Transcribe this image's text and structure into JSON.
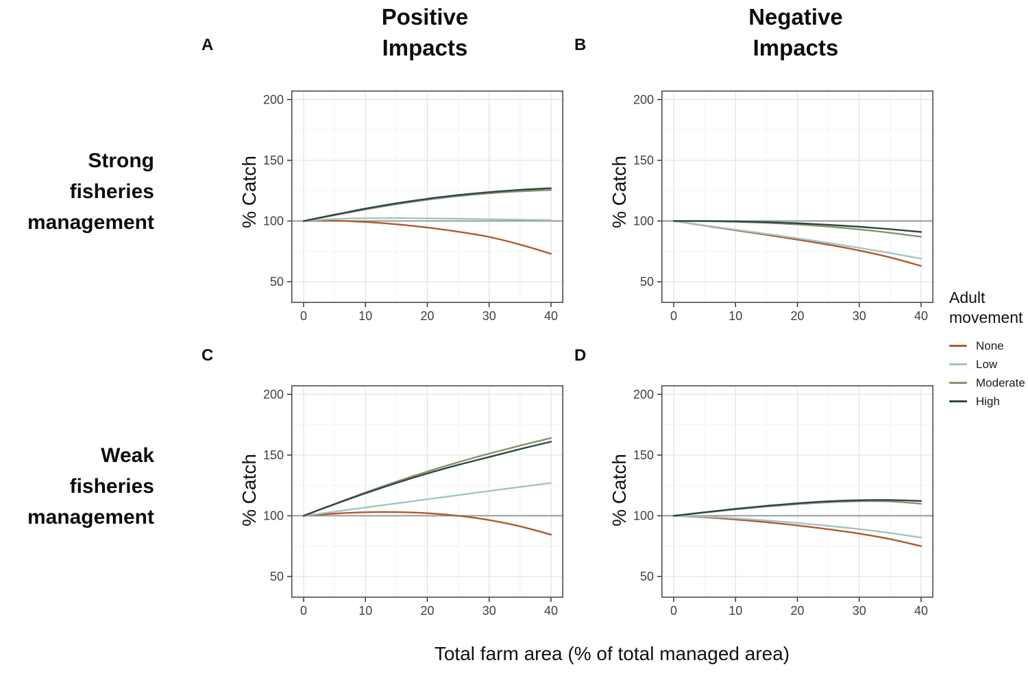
{
  "figure": {
    "column_headers": [
      {
        "line1": "Positive",
        "line2": "Impacts"
      },
      {
        "line1": "Negative",
        "line2": "Impacts"
      }
    ],
    "panel_labels": [
      "A",
      "B",
      "C",
      "D"
    ],
    "row_headers": [
      {
        "lines": [
          "Strong",
          "fisheries",
          "management"
        ]
      },
      {
        "lines": [
          "Weak",
          "fisheries",
          "management"
        ]
      }
    ],
    "y_axis_label": "% Catch",
    "x_axis_label": "Total farm area (% of total managed area)",
    "legend": {
      "title_line1": "Adult",
      "title_line2": "movement",
      "items": [
        {
          "label": "None",
          "color": "#b2572f"
        },
        {
          "label": "Low",
          "color": "#a0c5c0"
        },
        {
          "label": "Moderate",
          "color": "#8c8f6e"
        },
        {
          "label": "High",
          "color": "#2d4746"
        }
      ]
    },
    "colors": {
      "grid_major": "#e4e4e4",
      "grid_minor": "#f2f2f2",
      "panel_border": "#4d4d4d",
      "reference_line": "#999999",
      "tick_mark": "#333333",
      "tick_text": "#404040"
    }
  },
  "chart_data": [
    {
      "panel": "A",
      "type": "line",
      "row": "Strong fisheries management",
      "column": "Positive Impacts",
      "x": [
        0,
        5,
        10,
        15,
        20,
        25,
        30,
        35,
        40
      ],
      "xticks": [
        0,
        10,
        20,
        30,
        40
      ],
      "yticks": [
        50,
        100,
        150,
        200
      ],
      "xticks_minor": [
        5,
        15,
        25,
        35
      ],
      "yticks_minor": [
        75,
        125,
        175
      ],
      "xlim": [
        -2,
        42
      ],
      "ylim": [
        32.5,
        207.5
      ],
      "reference_y": 100,
      "series": [
        {
          "name": "None",
          "color": "#b2572f",
          "values": [
            100,
            100.3,
            99.2,
            97.3,
            94.6,
            91.2,
            86.9,
            80.6,
            73
          ]
        },
        {
          "name": "Low",
          "color": "#a0c5c0",
          "values": [
            100,
            101.6,
            102.3,
            102.4,
            102.2,
            101.9,
            101.5,
            101.1,
            100.8
          ]
        },
        {
          "name": "Moderate",
          "color": "#8c8f6e",
          "values": [
            100,
            104.8,
            109.5,
            113.8,
            117.5,
            120.5,
            122.8,
            124.4,
            125.5
          ]
        },
        {
          "name": "High",
          "color": "#2d4746",
          "values": [
            100,
            105.2,
            110.2,
            114.6,
            118.3,
            121.4,
            123.8,
            125.7,
            127
          ]
        }
      ]
    },
    {
      "panel": "B",
      "type": "line",
      "row": "Strong fisheries management",
      "column": "Negative Impacts",
      "x": [
        0,
        5,
        10,
        15,
        20,
        25,
        30,
        35,
        40
      ],
      "xticks": [
        0,
        10,
        20,
        30,
        40
      ],
      "yticks": [
        50,
        100,
        150,
        200
      ],
      "xticks_minor": [
        5,
        15,
        25,
        35
      ],
      "yticks_minor": [
        75,
        125,
        175
      ],
      "xlim": [
        -2,
        42
      ],
      "ylim": [
        32.5,
        207.5
      ],
      "reference_y": 100,
      "series": [
        {
          "name": "None",
          "color": "#b2572f",
          "values": [
            100,
            96.2,
            92.4,
            88.6,
            84.7,
            80.5,
            75.7,
            70,
            63
          ]
        },
        {
          "name": "Low",
          "color": "#a0c5c0",
          "values": [
            100,
            96.4,
            92.9,
            89.4,
            85.8,
            82,
            77.9,
            73.6,
            69
          ]
        },
        {
          "name": "Moderate",
          "color": "#8c8f6e",
          "values": [
            100,
            99.9,
            99.4,
            98.5,
            97.2,
            95.4,
            93.1,
            90.3,
            87
          ]
        },
        {
          "name": "High",
          "color": "#2d4746",
          "values": [
            100,
            100,
            99.7,
            99.1,
            98.2,
            96.9,
            95.3,
            93.3,
            91
          ]
        }
      ]
    },
    {
      "panel": "C",
      "type": "line",
      "row": "Weak fisheries management",
      "column": "Positive Impacts",
      "x": [
        0,
        5,
        10,
        15,
        20,
        25,
        30,
        35,
        40
      ],
      "xticks": [
        0,
        10,
        20,
        30,
        40
      ],
      "yticks": [
        50,
        100,
        150,
        200
      ],
      "xticks_minor": [
        5,
        15,
        25,
        35
      ],
      "yticks_minor": [
        75,
        125,
        175
      ],
      "xlim": [
        -2,
        42
      ],
      "ylim": [
        32.5,
        207.5
      ],
      "reference_y": 100,
      "series": [
        {
          "name": "None",
          "color": "#b2572f",
          "values": [
            100,
            101.8,
            102.9,
            103,
            102.1,
            100,
            96.5,
            91.3,
            84.5
          ]
        },
        {
          "name": "Low",
          "color": "#a0c5c0",
          "values": [
            100,
            103.4,
            106.8,
            110.2,
            113.6,
            117,
            120.4,
            123.7,
            127
          ]
        },
        {
          "name": "Moderate",
          "color": "#8c8f6e",
          "values": [
            100,
            109.8,
            119.2,
            128.1,
            136.4,
            144.1,
            151.2,
            157.8,
            164
          ]
        },
        {
          "name": "High",
          "color": "#2d4746",
          "values": [
            100,
            109.5,
            118.5,
            127,
            134.8,
            141.9,
            148.4,
            154.9,
            161
          ]
        }
      ]
    },
    {
      "panel": "D",
      "type": "line",
      "row": "Weak fisheries management",
      "column": "Negative Impacts",
      "x": [
        0,
        5,
        10,
        15,
        20,
        25,
        30,
        35,
        40
      ],
      "xticks": [
        0,
        10,
        20,
        30,
        40
      ],
      "yticks": [
        50,
        100,
        150,
        200
      ],
      "xticks_minor": [
        5,
        15,
        25,
        35
      ],
      "yticks_minor": [
        75,
        125,
        175
      ],
      "xlim": [
        -2,
        42
      ],
      "ylim": [
        32.5,
        207.5
      ],
      "reference_y": 100,
      "series": [
        {
          "name": "None",
          "color": "#b2572f",
          "values": [
            100,
            98.7,
            96.9,
            94.7,
            92,
            88.9,
            85.3,
            80.8,
            75
          ]
        },
        {
          "name": "Low",
          "color": "#a0c5c0",
          "values": [
            100,
            99.2,
            97.9,
            96.2,
            94.1,
            91.7,
            89,
            85.8,
            82
          ]
        },
        {
          "name": "Moderate",
          "color": "#8c8f6e",
          "values": [
            100,
            102.7,
            105.3,
            107.6,
            109.6,
            111.1,
            112,
            111.8,
            110
          ]
        },
        {
          "name": "High",
          "color": "#2d4746",
          "values": [
            100,
            102.9,
            105.7,
            108.2,
            110.3,
            111.9,
            112.8,
            113,
            112.2
          ]
        }
      ]
    }
  ]
}
